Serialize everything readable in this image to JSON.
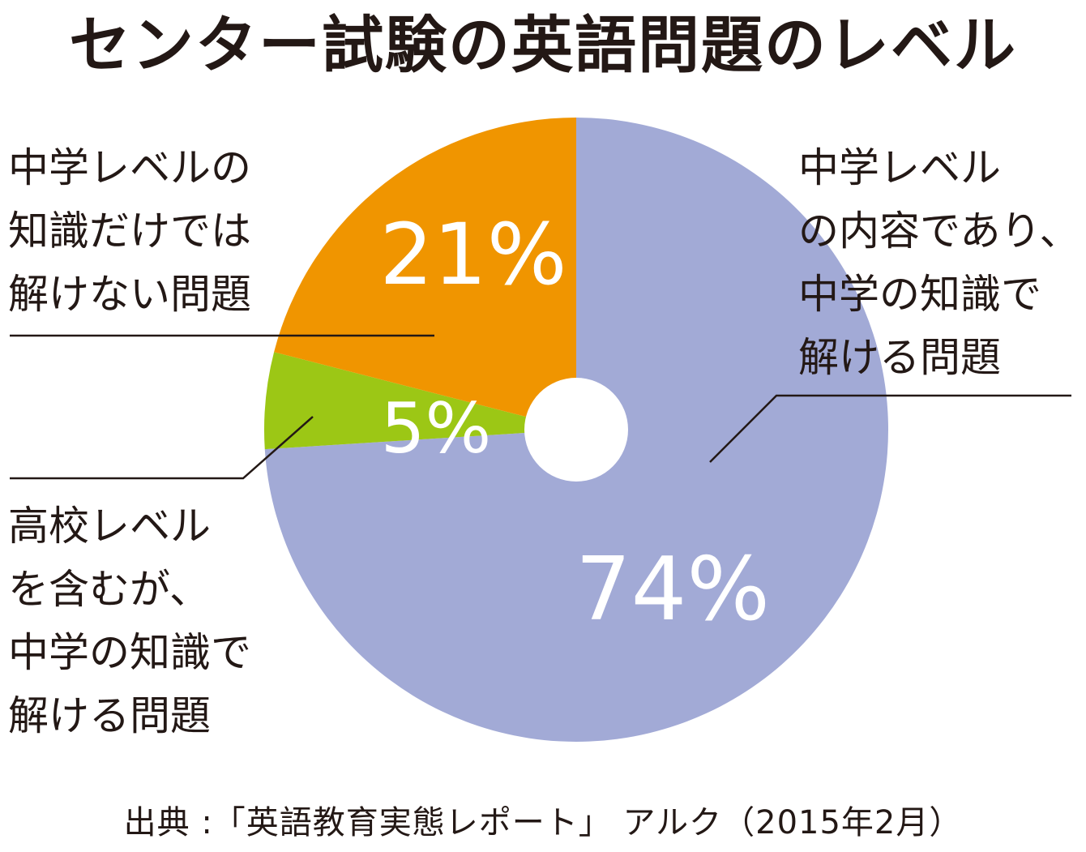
{
  "title": "センター試験の英語問題のレベル",
  "colors": {
    "segment_main": "#a2aad6",
    "segment_orange": "#f09500",
    "segment_green": "#9cc715",
    "leader_line": "#231815",
    "label_text": "#ffffff"
  },
  "chart_data": {
    "type": "pie",
    "title": "センター試験の英語問題のレベル",
    "donut_hole": true,
    "start_angle": "12 o'clock",
    "direction": "clockwise",
    "slices": [
      {
        "label": "中学レベルの内容であり、中学の知識で解ける問題",
        "value": 74,
        "display": "74%",
        "color": "#a2aad6"
      },
      {
        "label": "高校レベルを含むが、中学の知識で解ける問題",
        "value": 5,
        "display": "5%",
        "color": "#9cc715"
      },
      {
        "label": "中学レベルの知識だけでは解けない問題",
        "value": 21,
        "display": "21%",
        "color": "#f09500"
      }
    ]
  },
  "callouts": {
    "right": "中学レベル\nの内容であり、\n中学の知識で\n解ける問題",
    "left_bottom": "高校レベル\n を含むが、\n中学の知識で\n解ける問題",
    "left_top": "中学レベルの\n知識だけでは\n解けない問題"
  },
  "source": "出典 :「英語教育実態レポート」 アルク（2015年2月）"
}
